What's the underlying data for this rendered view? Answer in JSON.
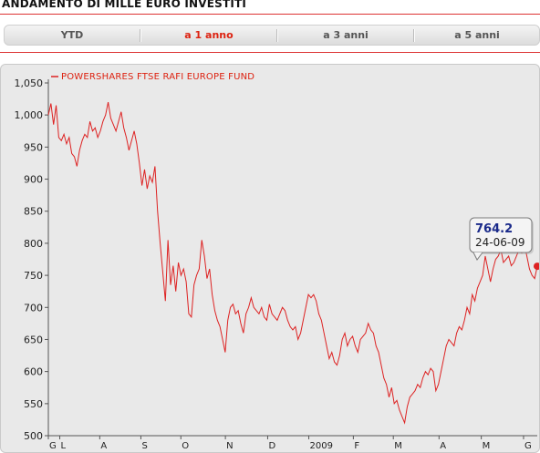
{
  "header": {
    "title": "ANDAMENTO DI MILLE EURO INVESTITI"
  },
  "tabs": [
    {
      "label": "YTD",
      "active": false
    },
    {
      "label": "a 1 anno",
      "active": true
    },
    {
      "label": "a 3 anni",
      "active": false
    },
    {
      "label": "a 5 anni",
      "active": false
    }
  ],
  "colors": {
    "accent": "#dd2222",
    "line": "#dd2222",
    "tooltip_value": "#1a2a8a",
    "plot_bg": "#e9e9e9"
  },
  "tooltip": {
    "value": "764.2",
    "date": "24-06-09"
  },
  "chart_data": {
    "type": "line",
    "series": [
      {
        "name": "POWERSHARES FTSE RAFI EUROPE FUND",
        "values": [
          1000,
          1018,
          985,
          1015,
          965,
          960,
          970,
          955,
          965,
          940,
          935,
          920,
          945,
          960,
          970,
          965,
          990,
          975,
          980,
          965,
          975,
          990,
          1000,
          1020,
          995,
          985,
          975,
          990,
          1005,
          980,
          965,
          945,
          960,
          975,
          955,
          925,
          890,
          915,
          885,
          905,
          895,
          920,
          850,
          800,
          755,
          710,
          805,
          735,
          765,
          725,
          770,
          750,
          760,
          740,
          690,
          685,
          735,
          750,
          760,
          805,
          780,
          745,
          760,
          720,
          695,
          680,
          670,
          650,
          630,
          680,
          700,
          705,
          690,
          695,
          675,
          660,
          690,
          700,
          715,
          700,
          695,
          690,
          700,
          685,
          680,
          705,
          690,
          685,
          680,
          690,
          700,
          695,
          680,
          670,
          665,
          670,
          650,
          660,
          680,
          700,
          720,
          715,
          720,
          710,
          690,
          680,
          660,
          640,
          620,
          630,
          615,
          610,
          625,
          650,
          660,
          640,
          650,
          655,
          640,
          630,
          650,
          655,
          660,
          675,
          665,
          660,
          640,
          630,
          610,
          590,
          580,
          560,
          575,
          550,
          555,
          540,
          530,
          520,
          545,
          560,
          565,
          570,
          580,
          575,
          590,
          600,
          595,
          605,
          600,
          570,
          580,
          600,
          620,
          640,
          650,
          645,
          640,
          660,
          670,
          665,
          680,
          700,
          690,
          720,
          710,
          730,
          740,
          750,
          780,
          760,
          740,
          760,
          775,
          780,
          790,
          770,
          775,
          780,
          765,
          770,
          780,
          790,
          785,
          800,
          780,
          760,
          750,
          745,
          764.2
        ],
        "color": "#dd2222"
      }
    ],
    "x_tick_labels": [
      "G",
      "L",
      "A",
      "S",
      "O",
      "N",
      "D",
      "2009",
      "F",
      "M",
      "A",
      "M",
      "G"
    ],
    "x_tick_positions": [
      0,
      5,
      22.5,
      40.5,
      58,
      77.5,
      96,
      114,
      133.5,
      151,
      171,
      189.5,
      208
    ],
    "y_ticks": [
      500,
      550,
      600,
      650,
      700,
      750,
      800,
      850,
      900,
      950,
      "1,000",
      "1,050"
    ],
    "ylim": [
      500,
      1050
    ],
    "xlim": [
      0,
      214
    ],
    "grid": false,
    "legend_position": "top-left"
  }
}
